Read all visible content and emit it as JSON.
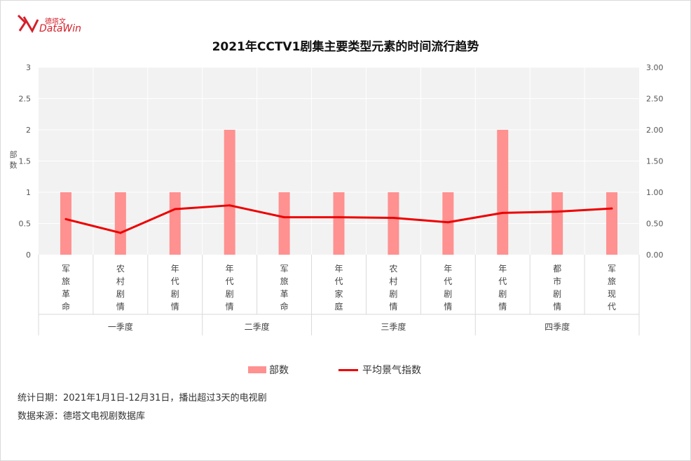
{
  "logo": {
    "cn": "德塔文",
    "en": "DataWin"
  },
  "colors": {
    "bar": "#ff9191",
    "line": "#ee0000",
    "plot_bg": "#f2f2f2",
    "grid": "#ffffff"
  },
  "legend": {
    "bar_label": "部数",
    "line_label": "平均景气指数"
  },
  "footnotes": {
    "line1": "统计日期：2021年1月1日-12月31日，播出超过3天的电视剧",
    "line2": "数据来源：德塔文电视剧数据库"
  },
  "chart_data": {
    "type": "bar",
    "title": "2021年CCTV1剧集主要类型元素的时间流行趋势",
    "ylabel": "部数",
    "y2label": "",
    "ylim": [
      0,
      3
    ],
    "y2lim": [
      0,
      3
    ],
    "yticks": [
      "0",
      "0.5",
      "1",
      "1.5",
      "2",
      "2.5",
      "3"
    ],
    "y2ticks": [
      "0.00",
      "0.50",
      "1.00",
      "1.50",
      "2.00",
      "2.50",
      "3.00"
    ],
    "categories": [
      "军旅革命",
      "农村剧情",
      "年代剧情",
      "年代剧情",
      "军旅革命",
      "年代家庭",
      "农村剧情",
      "年代剧情",
      "年代剧情",
      "都市剧情",
      "军旅现代"
    ],
    "groups": [
      {
        "name": "一季度",
        "span": 3
      },
      {
        "name": "二季度",
        "span": 2
      },
      {
        "name": "三季度",
        "span": 3
      },
      {
        "name": "四季度",
        "span": 3
      }
    ],
    "series": [
      {
        "name": "部数",
        "type": "bar",
        "axis": "left",
        "values": [
          1,
          1,
          1,
          2,
          1,
          1,
          1,
          1,
          2,
          1,
          1
        ]
      },
      {
        "name": "平均景气指数",
        "type": "line",
        "axis": "right",
        "values": [
          0.57,
          0.35,
          0.73,
          0.79,
          0.6,
          0.6,
          0.59,
          0.52,
          0.67,
          0.69,
          0.74
        ]
      }
    ],
    "grid": true,
    "legend_position": "bottom"
  }
}
